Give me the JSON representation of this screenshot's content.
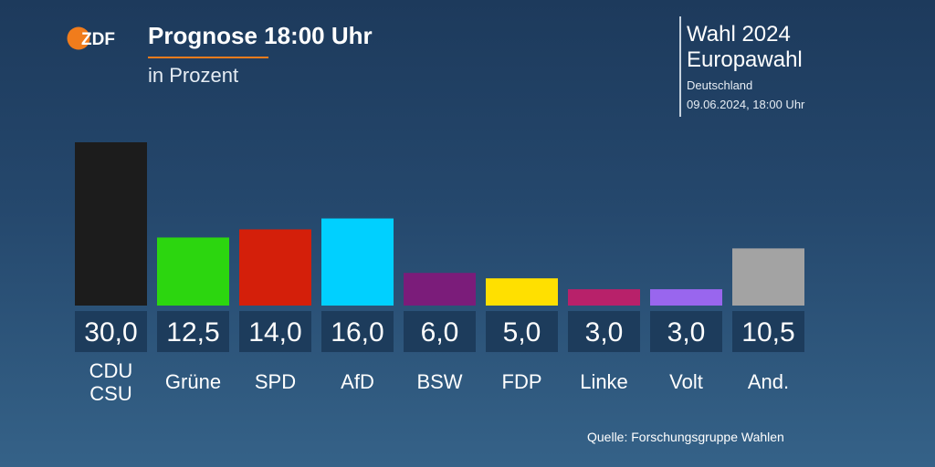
{
  "header": {
    "logo_text": "ZDF",
    "title": "Prognose 18:00 Uhr",
    "subtitle": "in Prozent"
  },
  "election": {
    "line1": "Wahl 2024",
    "line2": "Europawahl",
    "region": "Deutschland",
    "datetime": "09.06.2024, 18:00 Uhr"
  },
  "source": "Quelle: Forschungsgruppe Wahlen",
  "colors": {
    "accent": "#f07c1c",
    "value_box": "#1d3c5c"
  },
  "chart_data": {
    "type": "bar",
    "title": "Prognose 18:00 Uhr",
    "subtitle": "in Prozent",
    "categories": [
      "CDU\nCSU",
      "Grüne",
      "SPD",
      "AfD",
      "BSW",
      "FDP",
      "Linke",
      "Volt",
      "And."
    ],
    "values": [
      30.0,
      12.5,
      14.0,
      16.0,
      6.0,
      5.0,
      3.0,
      3.0,
      10.5
    ],
    "value_labels": [
      "30,0",
      "12,5",
      "14,0",
      "16,0",
      "6,0",
      "5,0",
      "3,0",
      "3,0",
      "10,5"
    ],
    "colors": [
      "#1c1c1c",
      "#2cd60f",
      "#d41f0a",
      "#00d0ff",
      "#7b1c7a",
      "#ffe000",
      "#b8216a",
      "#9966ee",
      "#a3a3a3"
    ],
    "ylim": [
      0,
      30
    ],
    "grid": false
  }
}
